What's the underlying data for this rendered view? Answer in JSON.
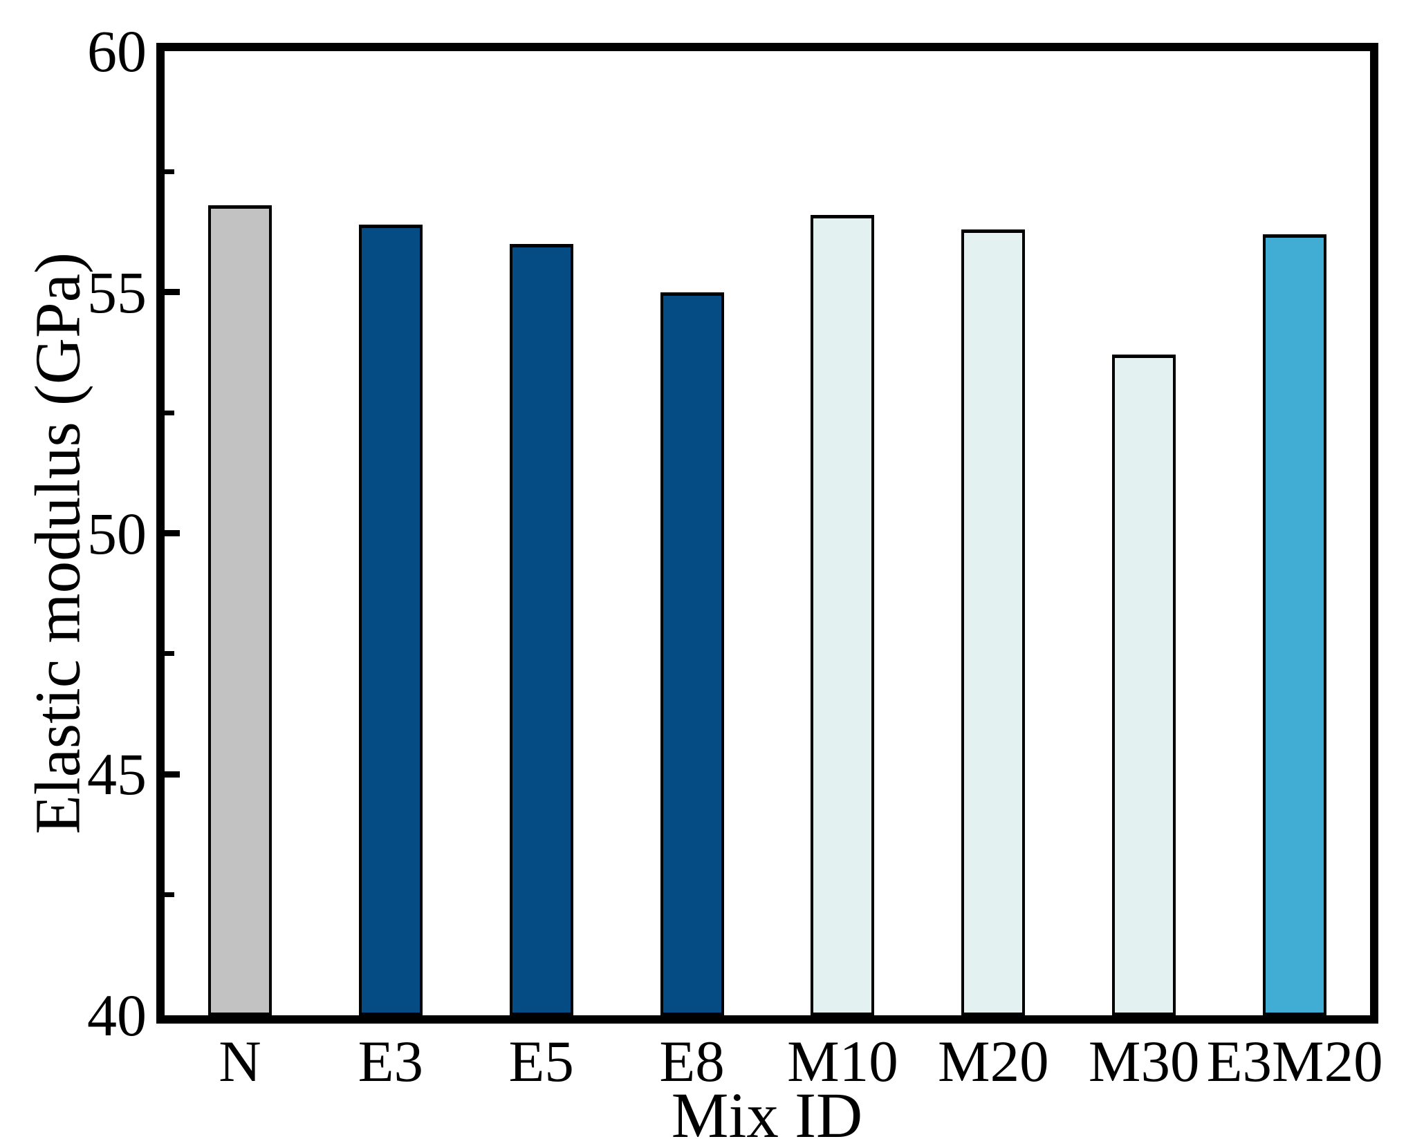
{
  "chart_data": {
    "type": "bar",
    "title": "",
    "xlabel": "Mix ID",
    "ylabel": "Elastic modulus (GPa)",
    "categories": [
      "N",
      "E3",
      "E5",
      "E8",
      "M10",
      "M20",
      "M30",
      "E3M20"
    ],
    "values": [
      56.8,
      56.4,
      56.0,
      55.0,
      56.6,
      56.3,
      53.7,
      56.2
    ],
    "bar_colors": [
      "#c2c2c2",
      "#054c84",
      "#054c84",
      "#054c84",
      "#e3f2f0",
      "#e3f2f0",
      "#e3f2f0",
      "#41add5"
    ],
    "bar_edge_color": "#000000",
    "background_color": "#ffffff",
    "ylim": [
      40,
      60
    ],
    "ytick_major": [
      40,
      45,
      50,
      55,
      60
    ],
    "ytick_major_labels": [
      "40",
      "45",
      "50",
      "55",
      "60"
    ],
    "ytick_minor": [
      42.5,
      47.5,
      52.5,
      57.5
    ],
    "tick_direction": "in",
    "grid": false,
    "legend": false
  }
}
